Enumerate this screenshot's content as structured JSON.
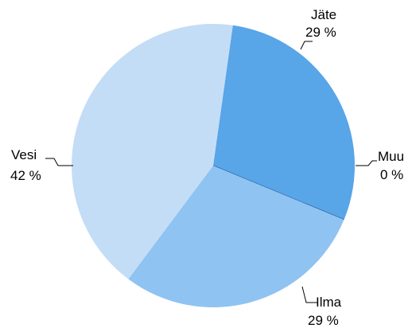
{
  "chart_data": {
    "type": "pie",
    "title": "",
    "slices": [
      {
        "label": "Jäte",
        "value": 29,
        "value_label": "29 %",
        "color": "#58a5e8"
      },
      {
        "label": "Muu",
        "value": 0,
        "value_label": "0 %",
        "color": "#1f4f8f"
      },
      {
        "label": "Ilma",
        "value": 29,
        "value_label": "29 %",
        "color": "#8fc3f2"
      },
      {
        "label": "Vesi",
        "value": 42,
        "value_label": "42 %",
        "color": "#c4ddf6"
      }
    ],
    "start_angle_deg": -82,
    "direction": "clockwise",
    "legend": "none"
  }
}
